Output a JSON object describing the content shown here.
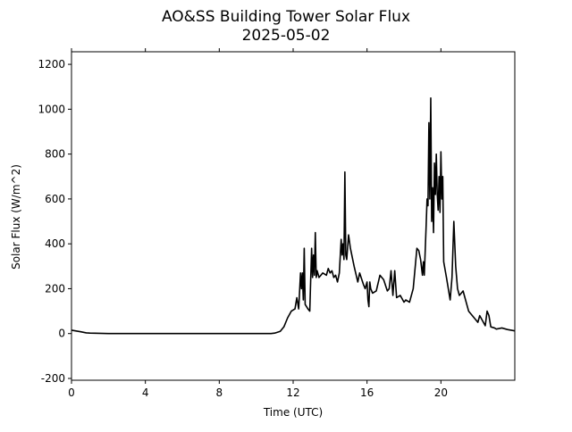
{
  "chart_data": {
    "type": "line",
    "title": "AO&SS Building Tower Solar Flux",
    "subtitle": "2025-05-02",
    "x_label": "Time (UTC)",
    "y_label": "Solar Flux (W/m^2)",
    "xlim": [
      0,
      24
    ],
    "xticks": [
      0,
      4,
      8,
      12,
      16,
      20
    ],
    "ylim": [
      -208,
      1256
    ],
    "yticks": [
      -200,
      0,
      200,
      400,
      600,
      800,
      1000,
      1200
    ],
    "x": [
      0,
      0.5,
      0.8,
      1,
      2,
      4,
      6,
      8,
      10,
      10.8,
      11,
      11.3,
      11.5,
      11.7,
      11.9,
      12.1,
      12.2,
      12.3,
      12.4,
      12.45,
      12.5,
      12.55,
      12.6,
      12.65,
      12.8,
      12.9,
      13.0,
      13.05,
      13.1,
      13.15,
      13.2,
      13.25,
      13.3,
      13.4,
      13.6,
      13.8,
      13.9,
      14.0,
      14.1,
      14.2,
      14.3,
      14.4,
      14.5,
      14.6,
      14.65,
      14.7,
      14.75,
      14.8,
      14.85,
      14.9,
      15.0,
      15.1,
      15.3,
      15.5,
      15.6,
      15.8,
      15.9,
      16.0,
      16.05,
      16.1,
      16.15,
      16.2,
      16.3,
      16.5,
      16.7,
      16.9,
      17.1,
      17.2,
      17.3,
      17.4,
      17.5,
      17.6,
      17.8,
      18.0,
      18.1,
      18.3,
      18.5,
      18.7,
      18.8,
      18.9,
      19.0,
      19.05,
      19.1,
      19.2,
      19.25,
      19.3,
      19.35,
      19.4,
      19.45,
      19.5,
      19.55,
      19.6,
      19.65,
      19.7,
      19.75,
      19.8,
      19.85,
      19.9,
      19.95,
      20.0,
      20.05,
      20.1,
      20.15,
      20.3,
      20.5,
      20.6,
      20.7,
      20.8,
      20.9,
      21.0,
      21.2,
      21.3,
      21.5,
      21.7,
      21.9,
      22.0,
      22.1,
      22.3,
      22.4,
      22.5,
      22.6,
      22.7,
      22.9,
      23.0,
      23.3,
      23.6,
      23.8,
      24
    ],
    "series": [
      {
        "name": "Solar Flux",
        "color": "#000000",
        "values": [
          15,
          8,
          3,
          2,
          0,
          0,
          0,
          0,
          0,
          0,
          2,
          10,
          30,
          70,
          100,
          110,
          160,
          110,
          270,
          200,
          270,
          150,
          380,
          130,
          110,
          100,
          380,
          250,
          350,
          260,
          450,
          250,
          280,
          250,
          270,
          260,
          290,
          270,
          280,
          250,
          260,
          230,
          270,
          420,
          350,
          400,
          330,
          720,
          350,
          330,
          440,
          380,
          300,
          230,
          270,
          220,
          200,
          230,
          150,
          120,
          230,
          200,
          180,
          190,
          260,
          240,
          190,
          200,
          280,
          170,
          280,
          160,
          170,
          140,
          150,
          140,
          200,
          380,
          370,
          330,
          260,
          320,
          260,
          480,
          600,
          570,
          940,
          600,
          1050,
          500,
          650,
          450,
          760,
          620,
          800,
          620,
          550,
          700,
          540,
          810,
          600,
          700,
          320,
          250,
          150,
          250,
          500,
          300,
          200,
          170,
          190,
          160,
          100,
          80,
          60,
          50,
          80,
          50,
          35,
          100,
          80,
          30,
          25,
          20,
          25,
          18,
          15,
          12
        ]
      }
    ]
  }
}
